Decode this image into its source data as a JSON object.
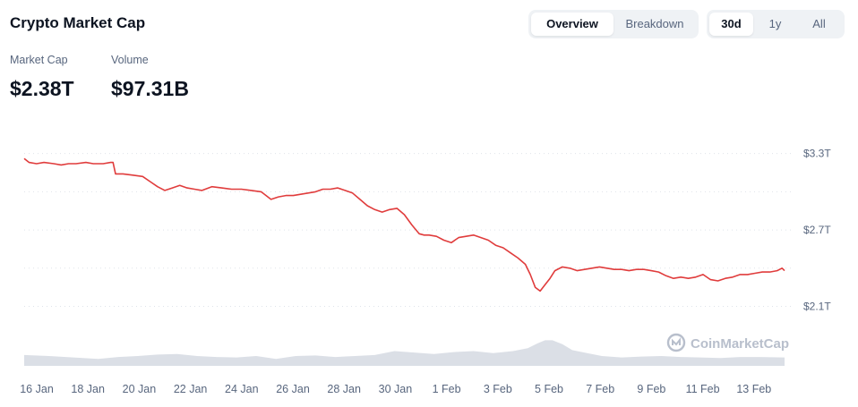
{
  "header": {
    "title": "Crypto Market Cap",
    "view_tabs": [
      {
        "label": "Overview",
        "active": true
      },
      {
        "label": "Breakdown",
        "active": false
      }
    ],
    "range_tabs": [
      {
        "label": "30d",
        "active": true
      },
      {
        "label": "1y",
        "active": false
      },
      {
        "label": "All",
        "active": false
      }
    ]
  },
  "stats": {
    "market_cap": {
      "label": "Market Cap",
      "value": "$2.38T"
    },
    "volume": {
      "label": "Volume",
      "value": "$97.31B"
    }
  },
  "watermark": "CoinMarketCap",
  "colors": {
    "line": "#e03c3c",
    "volume": "#d5d9e2",
    "grid": "#dfe3ea",
    "axis_text": "#58667e"
  },
  "chart_data": {
    "type": "line",
    "title": "",
    "xlabel": "",
    "ylabel": "",
    "x_ticks": [
      "16 Jan",
      "18 Jan",
      "20 Jan",
      "22 Jan",
      "24 Jan",
      "26 Jan",
      "28 Jan",
      "30 Jan",
      "1 Feb",
      "3 Feb",
      "5 Feb",
      "7 Feb",
      "9 Feb",
      "11 Feb",
      "13 Feb"
    ],
    "y_ticks": [
      "$3.3T",
      "$2.7T",
      "$2.1T"
    ],
    "y_tick_values": [
      3.3,
      2.7,
      2.1
    ],
    "xlim": [
      15.8,
      46.6
    ],
    "ylim": [
      1.9,
      3.48
    ],
    "grid": true,
    "legend": "none",
    "series": [
      {
        "x": [
          15.8,
          16.0,
          16.3,
          16.6,
          17.0,
          17.3,
          17.6,
          17.9,
          18.3,
          18.6,
          19.0,
          19.3,
          19.4,
          19.5,
          19.8,
          20.2,
          20.6,
          20.9,
          21.2,
          21.5,
          21.8,
          22.1,
          22.4,
          22.7,
          23.0,
          23.4,
          23.8,
          24.2,
          24.6,
          25.0,
          25.4,
          25.8,
          26.1,
          26.4,
          26.7,
          27.0,
          27.3,
          27.6,
          27.9,
          28.2,
          28.5,
          28.8,
          29.1,
          29.4,
          29.7,
          30.0,
          30.3,
          30.6,
          30.9,
          31.2,
          31.5,
          31.8,
          32.0,
          32.2,
          32.5,
          32.8,
          33.1,
          33.4,
          33.7,
          34.0,
          34.3,
          34.6,
          34.9,
          35.2,
          35.5,
          35.8,
          36.1,
          36.3,
          36.5,
          36.7,
          36.9,
          37.1,
          37.3,
          37.6,
          37.9,
          38.2,
          38.5,
          38.8,
          39.1,
          39.4,
          39.7,
          40.0,
          40.3,
          40.6,
          40.9,
          41.2,
          41.5,
          41.8,
          42.1,
          42.4,
          42.7,
          43.0,
          43.3,
          43.6,
          43.9,
          44.2,
          44.5,
          44.8,
          45.1,
          45.4,
          45.7,
          46.0,
          46.3,
          46.5,
          46.6
        ],
        "values": [
          3.26,
          3.23,
          3.22,
          3.23,
          3.22,
          3.21,
          3.22,
          3.22,
          3.23,
          3.22,
          3.22,
          3.23,
          3.23,
          3.14,
          3.14,
          3.13,
          3.12,
          3.08,
          3.04,
          3.01,
          3.03,
          3.05,
          3.03,
          3.02,
          3.01,
          3.04,
          3.03,
          3.02,
          3.02,
          3.01,
          3.0,
          2.94,
          2.96,
          2.97,
          2.97,
          2.98,
          2.99,
          3.0,
          3.02,
          3.02,
          3.03,
          3.01,
          2.99,
          2.94,
          2.89,
          2.86,
          2.84,
          2.86,
          2.87,
          2.82,
          2.74,
          2.67,
          2.66,
          2.66,
          2.65,
          2.62,
          2.6,
          2.64,
          2.65,
          2.66,
          2.64,
          2.62,
          2.58,
          2.56,
          2.52,
          2.48,
          2.43,
          2.35,
          2.25,
          2.22,
          2.27,
          2.32,
          2.38,
          2.41,
          2.4,
          2.38,
          2.39,
          2.4,
          2.41,
          2.4,
          2.39,
          2.39,
          2.38,
          2.39,
          2.39,
          2.38,
          2.37,
          2.34,
          2.32,
          2.33,
          2.32,
          2.33,
          2.35,
          2.31,
          2.3,
          2.32,
          2.33,
          2.35,
          2.35,
          2.36,
          2.37,
          2.37,
          2.38,
          2.4,
          2.38
        ]
      }
    ],
    "volume_series": {
      "x": [
        15.8,
        16.8,
        17.8,
        18.8,
        19.6,
        20.4,
        21.2,
        22.0,
        22.8,
        23.6,
        24.4,
        25.2,
        26.0,
        26.8,
        27.6,
        28.4,
        29.2,
        30.0,
        30.8,
        31.6,
        32.4,
        33.2,
        34.0,
        34.8,
        35.6,
        36.2,
        36.6,
        36.9,
        37.2,
        37.6,
        38.0,
        38.6,
        39.2,
        40.0,
        40.8,
        41.6,
        42.4,
        43.2,
        44.0,
        44.8,
        45.6,
        46.6
      ],
      "values": [
        1.1,
        1.0,
        0.85,
        0.7,
        0.9,
        1.0,
        1.15,
        1.2,
        1.0,
        0.9,
        0.85,
        1.0,
        0.7,
        1.0,
        1.05,
        0.9,
        1.0,
        1.1,
        1.5,
        1.35,
        1.2,
        1.4,
        1.5,
        1.3,
        1.5,
        1.8,
        2.3,
        2.6,
        2.6,
        2.2,
        1.6,
        1.3,
        1.0,
        0.85,
        0.95,
        1.0,
        0.9,
        0.85,
        0.8,
        0.9,
        0.9,
        0.85
      ]
    }
  }
}
